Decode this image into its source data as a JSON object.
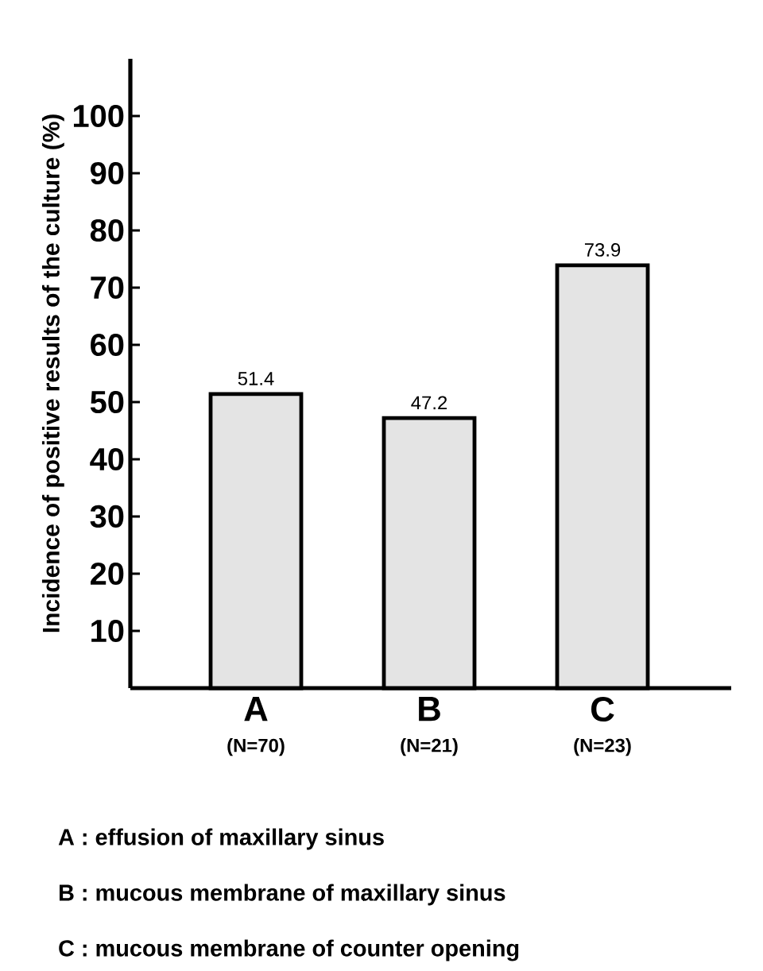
{
  "chart_data": {
    "type": "bar",
    "ylabel": "Incidence of positive results of the culture (%)",
    "categories": [
      "A",
      "B",
      "C"
    ],
    "values": [
      51.4,
      47.2,
      73.9
    ],
    "color": "#e4e4e4",
    "ylim": [
      0,
      110
    ],
    "yticks": [
      10,
      20,
      30,
      40,
      50,
      60,
      70,
      80,
      90,
      100
    ],
    "data_labels": true,
    "grid": false,
    "annotations": [
      "(N=70)",
      "(N=21)",
      "(N=23)",
      "A : effusion of maxillary sinus",
      "B : mucous membrane of maxillary sinus",
      "C : mucous membrane of counter opening"
    ]
  }
}
